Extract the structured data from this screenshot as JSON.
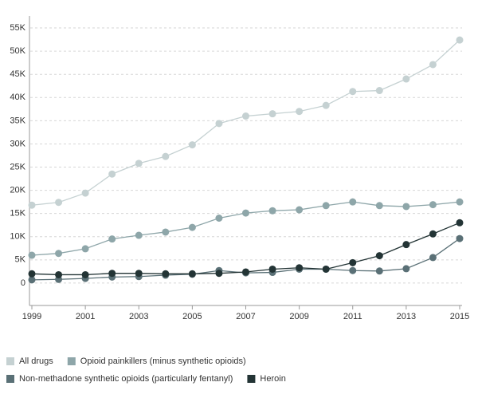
{
  "chart_data": {
    "type": "line",
    "x": [
      1999,
      2000,
      2001,
      2002,
      2003,
      2004,
      2005,
      2006,
      2007,
      2008,
      2009,
      2010,
      2011,
      2012,
      2013,
      2014,
      2015
    ],
    "xlim": [
      1999,
      2015
    ],
    "xticks": [
      1999,
      2001,
      2003,
      2005,
      2007,
      2009,
      2011,
      2013,
      2015
    ],
    "ylim": [
      -5000,
      57500
    ],
    "yticks": [
      0,
      {
        "value": 5000,
        "label": "5K"
      },
      {
        "value": 10000,
        "label": "10K"
      },
      {
        "value": 15000,
        "label": "15K"
      },
      {
        "value": 20000,
        "label": "20K"
      },
      {
        "value": 25000,
        "label": "25K"
      },
      {
        "value": 30000,
        "label": "30K"
      },
      {
        "value": 35000,
        "label": "35K"
      },
      {
        "value": 40000,
        "label": "40K"
      },
      {
        "value": 45000,
        "label": "45K"
      },
      {
        "value": 50000,
        "label": "50K"
      },
      {
        "value": 55000,
        "label": "55K"
      }
    ],
    "grid": true,
    "legend": "bottom",
    "series": [
      {
        "name": "All drugs",
        "color": "#c5d1d2",
        "values": [
          16800,
          17400,
          19400,
          23500,
          25800,
          27300,
          29800,
          34400,
          36000,
          36500,
          37000,
          38300,
          41300,
          41500,
          44000,
          47100,
          52400
        ]
      },
      {
        "name": "Opioid painkillers (minus synthetic opioids)",
        "color": "#8ea6a9",
        "values": [
          6000,
          6400,
          7400,
          9500,
          10300,
          11000,
          12000,
          14000,
          15100,
          15600,
          15800,
          16700,
          17500,
          16700,
          16500,
          16900,
          17500
        ]
      },
      {
        "name": "Non-methadone synthetic opioids (particularly fentanyl)",
        "color": "#5a7076",
        "values": [
          700,
          800,
          1000,
          1300,
          1400,
          1700,
          1900,
          2700,
          2200,
          2300,
          3000,
          3000,
          2700,
          2600,
          3100,
          5500,
          9600
        ]
      },
      {
        "name": "Heroin",
        "color": "#233435",
        "values": [
          2000,
          1800,
          1800,
          2100,
          2100,
          2000,
          2000,
          2100,
          2400,
          3000,
          3300,
          3000,
          4400,
          5900,
          8300,
          10600,
          13000
        ]
      }
    ]
  }
}
